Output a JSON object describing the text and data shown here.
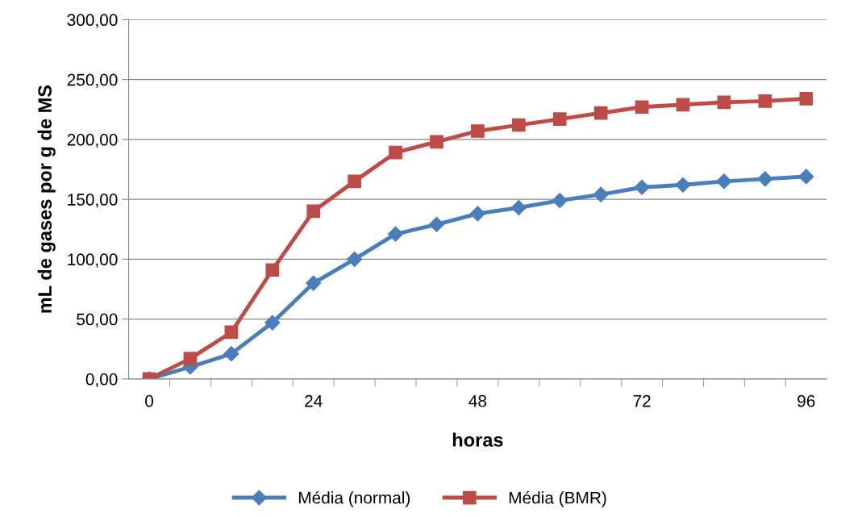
{
  "chart_data": {
    "type": "line",
    "xlabel": "horas",
    "ylabel": "mL de gases por g de MS",
    "x": [
      0,
      6,
      12,
      18,
      24,
      30,
      36,
      42,
      48,
      54,
      60,
      66,
      72,
      78,
      84,
      90,
      96
    ],
    "series": [
      {
        "name": "Média (normal)",
        "color": "#4a7ebb",
        "marker": "diamond",
        "values": [
          0,
          10,
          21,
          47,
          80,
          100,
          121,
          129,
          138,
          143,
          149,
          154,
          160,
          162,
          165,
          167,
          169
        ]
      },
      {
        "name": "Média (BMR)",
        "color": "#be4b48",
        "marker": "square",
        "values": [
          0,
          17,
          39,
          91,
          140,
          165,
          189,
          198,
          207,
          212,
          217,
          222,
          227,
          229,
          231,
          232,
          234
        ]
      }
    ],
    "xlim": [
      -3,
      99
    ],
    "xticks": [
      {
        "value": 0,
        "label": "0"
      },
      {
        "value": 24,
        "label": "24"
      },
      {
        "value": 48,
        "label": "48"
      },
      {
        "value": 72,
        "label": "72"
      },
      {
        "value": 96,
        "label": "96"
      },
      {
        "value": 3,
        "label": null
      },
      {
        "value": 9,
        "label": null
      },
      {
        "value": 15,
        "label": null
      },
      {
        "value": 21,
        "label": null
      },
      {
        "value": 27,
        "label": null
      },
      {
        "value": 33,
        "label": null
      },
      {
        "value": 39,
        "label": null
      },
      {
        "value": 45,
        "label": null
      },
      {
        "value": 51,
        "label": null
      },
      {
        "value": 57,
        "label": null
      },
      {
        "value": 63,
        "label": null
      },
      {
        "value": 69,
        "label": null
      },
      {
        "value": 75,
        "label": null
      },
      {
        "value": 81,
        "label": null
      },
      {
        "value": 87,
        "label": null
      },
      {
        "value": 93,
        "label": null
      }
    ],
    "ylim": [
      0,
      300
    ],
    "yticks": [
      {
        "value": 0,
        "label": "0,00"
      },
      {
        "value": 50,
        "label": "50,00"
      },
      {
        "value": 100,
        "label": "100,00"
      },
      {
        "value": 150,
        "label": "150,00"
      },
      {
        "value": 200,
        "label": "200,00"
      },
      {
        "value": 250,
        "label": "250,00"
      },
      {
        "value": 300,
        "label": "300,00"
      }
    ],
    "grid": "y",
    "legend": "bottom",
    "line_style": "solid"
  }
}
